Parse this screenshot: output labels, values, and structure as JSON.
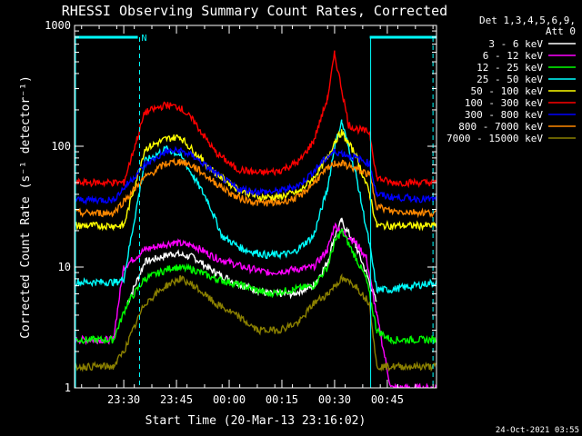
{
  "chart_data": {
    "type": "line",
    "title": "RHESSI Observing Summary Count Rates, Corrected",
    "xlabel": "Start Time (20-Mar-13 23:16:02)",
    "ylabel": "Corrected Count Rate (s⁻¹ detector⁻¹)",
    "yscale": "log",
    "ylim": [
      1,
      1000
    ],
    "xlim_minutes": [
      0,
      103
    ],
    "y_ticks": [
      {
        "v": 1,
        "label": "1"
      },
      {
        "v": 10,
        "label": "10"
      },
      {
        "v": 100,
        "label": "100"
      },
      {
        "v": 1000,
        "label": "1000"
      }
    ],
    "x_ticks": [
      {
        "m": 14,
        "label": "23:30"
      },
      {
        "m": 29,
        "label": "23:45"
      },
      {
        "m": 44,
        "label": "00:00"
      },
      {
        "m": 59,
        "label": "00:15"
      },
      {
        "m": 74,
        "label": "00:30"
      },
      {
        "m": 89,
        "label": "00:45"
      }
    ],
    "legend": {
      "position": "right",
      "header": [
        "Det 1,3,4,5,6,9,",
        "Att 0"
      ]
    },
    "timestamp": "24-Oct-2021 03:55",
    "flags": {
      "bar_color": "#00ffff",
      "label": "N",
      "intervals": [
        [
          0,
          18
        ],
        [
          84,
          103
        ]
      ],
      "dashed_lines": [
        18.5,
        102
      ]
    },
    "series": [
      {
        "name": "3 - 6 keV",
        "color": "#ffffff",
        "x": [
          0,
          11,
          15,
          20,
          28,
          34,
          40,
          48,
          55,
          62,
          68,
          72,
          74,
          76,
          80,
          83,
          86,
          90,
          103
        ],
        "y": [
          null,
          null,
          5,
          11,
          13,
          12,
          9,
          7,
          6,
          6,
          7,
          11,
          18,
          24,
          15,
          9,
          5,
          null,
          null
        ]
      },
      {
        "name": "6 - 12 keV",
        "color": "#ff00ff",
        "x": [
          0,
          11,
          14,
          20,
          28,
          34,
          40,
          48,
          55,
          62,
          68,
          72,
          74,
          76,
          80,
          83,
          86,
          90,
          103
        ],
        "y": [
          2.5,
          2.5,
          10,
          14,
          16,
          15,
          12,
          10,
          9,
          9.5,
          10,
          14,
          22,
          20,
          16,
          12,
          4,
          1,
          1
        ]
      },
      {
        "name": "12 - 25 keV",
        "color": "#00ff00",
        "x": [
          0,
          11,
          15,
          20,
          28,
          34,
          40,
          48,
          55,
          62,
          68,
          72,
          74,
          76,
          80,
          83,
          86,
          90,
          103
        ],
        "y": [
          2.5,
          2.5,
          5,
          8,
          10,
          9.5,
          8,
          7,
          6,
          6.5,
          7,
          10,
          16,
          20,
          12,
          8,
          3,
          2.5,
          2.5
        ]
      },
      {
        "name": "25 - 50 keV",
        "color": "#00ffff",
        "x": [
          0,
          6,
          12,
          14,
          20,
          26,
          30,
          34,
          38,
          42,
          48,
          55,
          62,
          68,
          72,
          74,
          76,
          80,
          84,
          86,
          90,
          103
        ],
        "y": [
          7.5,
          7.5,
          7.5,
          8,
          75,
          95,
          85,
          55,
          35,
          18,
          14,
          12.5,
          13,
          18,
          45,
          100,
          160,
          60,
          15,
          6.5,
          6.5,
          7.5
        ]
      },
      {
        "name": "50 - 100 keV",
        "color": "#ffff00",
        "x": [
          0,
          11,
          13,
          14,
          20,
          26,
          30,
          34,
          40,
          46,
          52,
          58,
          64,
          68,
          72,
          74,
          76,
          80,
          84,
          86,
          90,
          103
        ],
        "y": [
          22,
          22,
          22,
          22,
          95,
          115,
          120,
          90,
          60,
          45,
          38,
          38,
          42,
          55,
          80,
          110,
          130,
          85,
          40,
          22,
          22,
          22
        ]
      },
      {
        "name": "100 - 300 keV",
        "color": "#ff0000",
        "x": [
          0,
          11,
          14,
          20,
          26,
          30,
          34,
          40,
          46,
          52,
          58,
          64,
          68,
          72,
          74,
          76,
          78,
          80,
          84,
          86,
          90,
          103
        ],
        "y": [
          50,
          50,
          50,
          190,
          220,
          210,
          160,
          90,
          65,
          60,
          62,
          75,
          110,
          250,
          580,
          300,
          150,
          140,
          130,
          55,
          50,
          50
        ]
      },
      {
        "name": "300 - 800 keV",
        "color": "#0000ff",
        "x": [
          0,
          11,
          20,
          26,
          30,
          34,
          40,
          46,
          52,
          58,
          64,
          68,
          72,
          74,
          76,
          80,
          84,
          86,
          90,
          103
        ],
        "y": [
          36,
          36,
          70,
          90,
          92,
          82,
          60,
          45,
          42,
          42,
          48,
          62,
          82,
          90,
          88,
          80,
          72,
          40,
          38,
          36
        ]
      },
      {
        "name": "800 - 7000 keV",
        "color": "#ff8800",
        "x": [
          0,
          11,
          20,
          26,
          30,
          34,
          40,
          46,
          52,
          58,
          64,
          68,
          72,
          74,
          76,
          80,
          84,
          86,
          90,
          103
        ],
        "y": [
          28,
          28,
          55,
          72,
          75,
          68,
          50,
          38,
          34,
          34,
          38,
          50,
          65,
          72,
          72,
          65,
          58,
          32,
          29,
          28
        ]
      },
      {
        "name": "7000 - 15000 keV",
        "color": "#8b8000",
        "x": [
          0,
          11,
          14,
          20,
          26,
          30,
          34,
          40,
          46,
          52,
          58,
          64,
          68,
          72,
          74,
          76,
          80,
          84,
          86,
          90,
          103
        ],
        "y": [
          1.5,
          1.5,
          2,
          5,
          7,
          8,
          7,
          5,
          4,
          3,
          3,
          3.5,
          5,
          6,
          7,
          8,
          7,
          5,
          1.5,
          1.5,
          1.5
        ]
      }
    ]
  }
}
